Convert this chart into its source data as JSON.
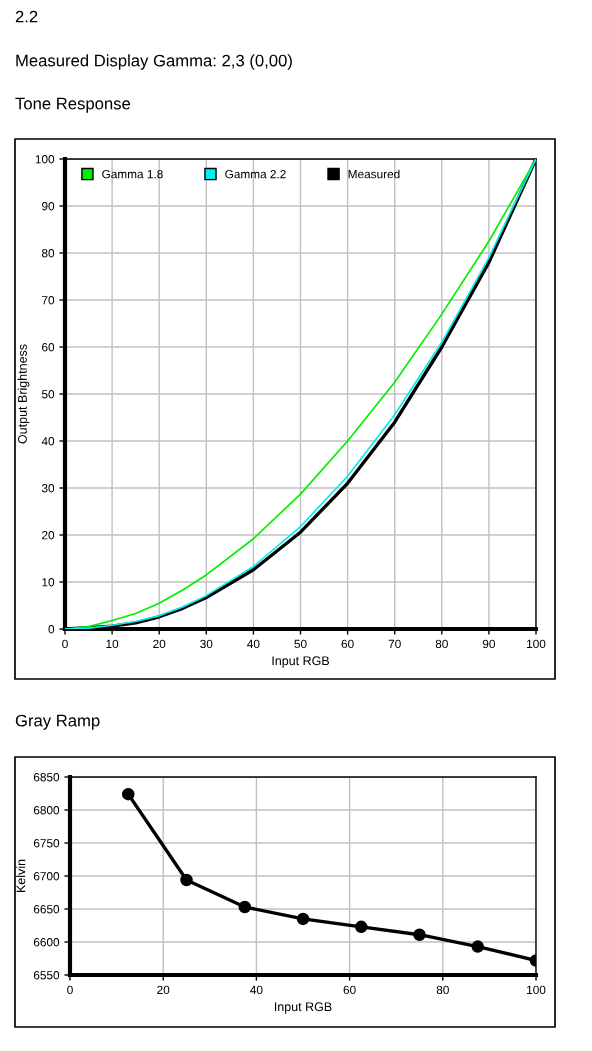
{
  "chart_data": [
    {
      "type": "line",
      "title": "Tone Response",
      "annotations": [
        "2.2",
        "Measured Display Gamma: 2,3 (0,00)"
      ],
      "xlabel": "Input RGB",
      "ylabel": "Output Brightness",
      "xlim": [
        0,
        100
      ],
      "ylim": [
        0,
        100
      ],
      "xticks": [
        0,
        10,
        20,
        30,
        40,
        50,
        60,
        70,
        80,
        90,
        100
      ],
      "yticks": [
        0,
        10,
        20,
        30,
        40,
        50,
        60,
        70,
        80,
        90,
        100
      ],
      "grid": true,
      "legend": "top",
      "marker": "none",
      "line_style": "solid",
      "x": [
        0,
        5,
        10,
        15,
        20,
        25,
        30,
        40,
        50,
        60,
        70,
        80,
        90,
        100
      ],
      "series": [
        {
          "name": "Gamma 1.8",
          "color": "#00ee00",
          "values": [
            0,
            0.5,
            1.8,
            3.3,
            5.5,
            8.3,
            11.5,
            19.2,
            28.7,
            40,
            52.5,
            67,
            82.5,
            100
          ]
        },
        {
          "name": "Gamma 2.2",
          "color": "#00eeee",
          "values": [
            0,
            0.2,
            0.8,
            1.6,
            2.8,
            4.7,
            7.1,
            13.3,
            21.8,
            32.5,
            45.6,
            61,
            79,
            100
          ]
        },
        {
          "name": "Measured",
          "color": "#000000",
          "values": [
            0,
            0.3,
            0.6,
            1.3,
            2.6,
            4.4,
            6.7,
            12.6,
            20.6,
            31,
            44,
            60,
            78,
            100
          ]
        }
      ]
    },
    {
      "type": "line",
      "title": "Gray Ramp",
      "xlabel": "Input RGB",
      "ylabel": "Kelvin",
      "xlim": [
        0,
        100
      ],
      "ylim": [
        6550,
        6850
      ],
      "xticks": [
        0,
        20,
        40,
        60,
        80,
        100
      ],
      "yticks": [
        6550,
        6600,
        6650,
        6700,
        6750,
        6800,
        6850
      ],
      "grid": true,
      "marker": "circle",
      "line_style": "solid",
      "x": [
        12.5,
        25,
        37.5,
        50,
        62.5,
        75,
        87.5,
        100
      ],
      "series": [
        {
          "color": "#000000",
          "values": [
            6824,
            6694,
            6653,
            6635,
            6623,
            6611,
            6593,
            6572
          ]
        }
      ]
    }
  ]
}
